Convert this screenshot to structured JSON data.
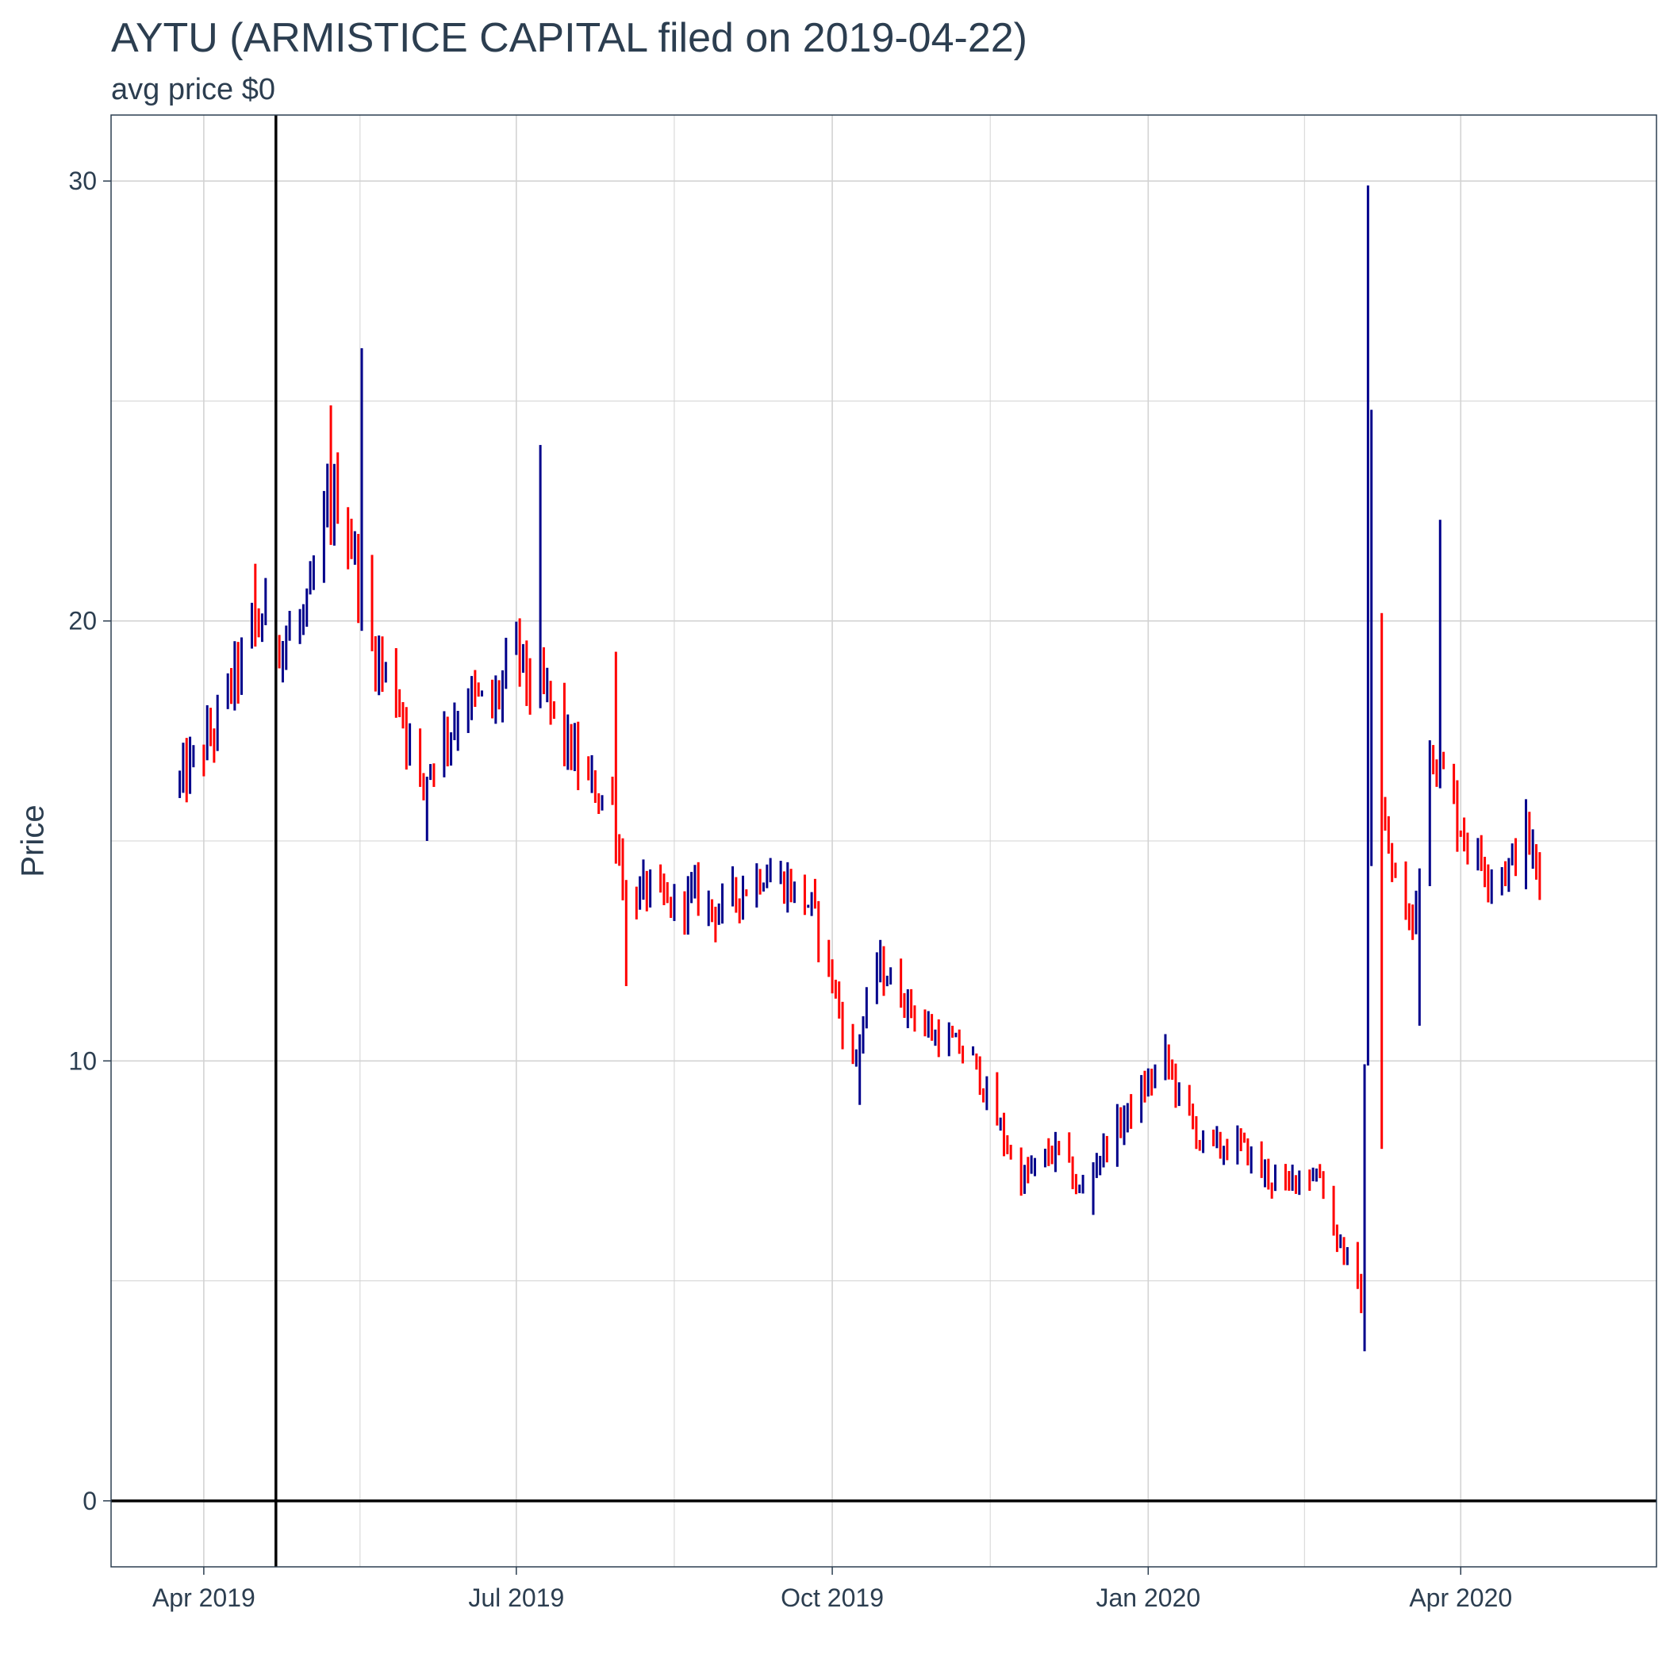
{
  "chart_data": {
    "type": "ohlc",
    "title": "AYTU (ARMISTICE CAPITAL filed on 2019-04-22)",
    "subtitle": "avg price $0",
    "xlabel": "",
    "ylabel": "Price",
    "x_tick_labels": [
      "Apr 2019",
      "Jul 2019",
      "Oct 2019",
      "Jan 2020",
      "Apr 2020"
    ],
    "x_tick_dates": [
      "2019-04-01",
      "2019-07-01",
      "2019-10-01",
      "2020-01-01",
      "2020-04-01"
    ],
    "x_range": [
      "2019-03-05",
      "2020-05-28"
    ],
    "y_ticks": [
      0,
      10,
      20,
      30
    ],
    "ylim": [
      -1.5,
      31.5
    ],
    "grid": true,
    "vline_date": "2019-04-22",
    "hline_value": 0,
    "colors": {
      "up": "#00008b",
      "down": "#ff0000",
      "reference_line": "#000000",
      "text": "#2c3e50",
      "grid": "#d3d3d3"
    },
    "anchors": [
      [
        "2019-03-25",
        16.3
      ],
      [
        "2019-03-29",
        16.8
      ],
      [
        "2019-04-04",
        17.5
      ],
      [
        "2019-04-09",
        18.6
      ],
      [
        "2019-04-15",
        19.6
      ],
      [
        "2019-04-19",
        20.2
      ],
      [
        "2019-04-24",
        19.5
      ],
      [
        "2019-05-01",
        20.1
      ],
      [
        "2019-05-07",
        22.5
      ],
      [
        "2019-05-10",
        22.8
      ],
      [
        "2019-05-14",
        21.8
      ],
      [
        "2019-05-20",
        19.4
      ],
      [
        "2019-05-28",
        18.2
      ],
      [
        "2019-06-03",
        16.2
      ],
      [
        "2019-06-07",
        17.0
      ],
      [
        "2019-06-12",
        17.6
      ],
      [
        "2019-06-17",
        18.3
      ],
      [
        "2019-06-24",
        18.0
      ],
      [
        "2019-07-01",
        19.4
      ],
      [
        "2019-07-05",
        18.5
      ],
      [
        "2019-07-10",
        18.3
      ],
      [
        "2019-07-15",
        17.3
      ],
      [
        "2019-07-22",
        16.3
      ],
      [
        "2019-07-29",
        15.8
      ],
      [
        "2019-08-02",
        13.6
      ],
      [
        "2019-08-08",
        13.9
      ],
      [
        "2019-08-15",
        13.5
      ],
      [
        "2019-08-22",
        13.8
      ],
      [
        "2019-08-28",
        13.4
      ],
      [
        "2019-09-05",
        13.9
      ],
      [
        "2019-09-11",
        14.3
      ],
      [
        "2019-09-18",
        14.0
      ],
      [
        "2019-09-25",
        13.5
      ],
      [
        "2019-10-01",
        11.8
      ],
      [
        "2019-10-07",
        9.9
      ],
      [
        "2019-10-14",
        12.2
      ],
      [
        "2019-10-18",
        11.8
      ],
      [
        "2019-10-24",
        11.2
      ],
      [
        "2019-10-30",
        10.6
      ],
      [
        "2019-11-05",
        10.4
      ],
      [
        "2019-11-11",
        10.0
      ],
      [
        "2019-11-18",
        8.6
      ],
      [
        "2019-11-25",
        7.3
      ],
      [
        "2019-12-02",
        7.8
      ],
      [
        "2019-12-06",
        8.0
      ],
      [
        "2019-12-12",
        7.0
      ],
      [
        "2019-12-18",
        7.9
      ],
      [
        "2019-12-26",
        8.8
      ],
      [
        "2020-01-02",
        9.6
      ],
      [
        "2020-01-06",
        10.1
      ],
      [
        "2020-01-10",
        9.2
      ],
      [
        "2020-01-16",
        8.2
      ],
      [
        "2020-01-22",
        8.0
      ],
      [
        "2020-01-28",
        8.1
      ],
      [
        "2020-02-03",
        7.5
      ],
      [
        "2020-02-10",
        7.1
      ],
      [
        "2020-02-14",
        7.5
      ],
      [
        "2020-02-20",
        7.4
      ],
      [
        "2020-02-24",
        6.2
      ],
      [
        "2020-02-28",
        5.5
      ],
      [
        "2020-03-03",
        4.5
      ],
      [
        "2020-03-06",
        20.0
      ],
      [
        "2020-03-09",
        15.5
      ],
      [
        "2020-03-13",
        14.0
      ],
      [
        "2020-03-18",
        13.0
      ],
      [
        "2020-03-23",
        17.2
      ],
      [
        "2020-03-27",
        16.5
      ],
      [
        "2020-04-01",
        15.3
      ],
      [
        "2020-04-06",
        14.6
      ],
      [
        "2020-04-10",
        14.3
      ],
      [
        "2020-04-15",
        14.4
      ],
      [
        "2020-04-20",
        15.2
      ],
      [
        "2020-04-24",
        14.0
      ]
    ],
    "spikes": [
      [
        "2019-04-16",
        21.3
      ],
      [
        "2019-05-08",
        24.9
      ],
      [
        "2019-05-17",
        26.2
      ],
      [
        "2019-07-08",
        24.0
      ],
      [
        "2019-07-30",
        19.3
      ],
      [
        "2020-03-05",
        29.9
      ],
      [
        "2020-03-06",
        24.8
      ],
      [
        "2020-03-26",
        22.3
      ]
    ],
    "dips": [
      [
        "2019-06-05",
        15.0
      ],
      [
        "2019-08-02",
        11.7
      ],
      [
        "2019-10-09",
        9.0
      ],
      [
        "2019-12-16",
        6.5
      ],
      [
        "2020-03-04",
        3.4
      ],
      [
        "2020-03-09",
        8.0
      ],
      [
        "2020-03-20",
        10.8
      ]
    ]
  }
}
